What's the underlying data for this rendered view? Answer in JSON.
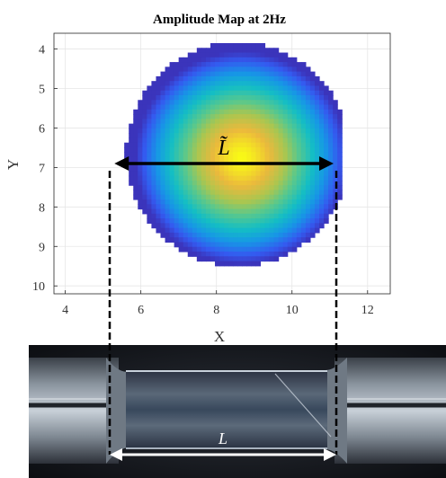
{
  "chart_data": {
    "type": "heatmap",
    "title": "Amplitude Map at 2Hz",
    "xlabel": "X",
    "ylabel": "Y",
    "xlim": [
      3.7,
      12.6
    ],
    "ylim": [
      10.2,
      3.6
    ],
    "y_axis_direction": "top-down",
    "xticks": [
      4,
      6,
      8,
      10,
      12
    ],
    "yticks": [
      4,
      5,
      6,
      7,
      8,
      9,
      10
    ],
    "grid": true,
    "colormap": "parula",
    "field": {
      "shape": "roughly circular blob",
      "center": [
        8.5,
        6.6
      ],
      "peak_at": [
        8.6,
        6.7
      ],
      "x_extent": [
        5.3,
        11.2
      ],
      "y_extent": [
        3.95,
        9.6
      ]
    },
    "annotations": [
      {
        "label": "L̃",
        "kind": "double-arrow",
        "from": [
          5.3,
          6.9
        ],
        "to": [
          11.1,
          6.9
        ],
        "color": "#000000"
      }
    ]
  },
  "photo": {
    "annotation_label": "L",
    "arrow_color": "#ffffff"
  },
  "colors": {
    "colormap_low": "#3e26a8",
    "colormap_mid": "#17bfc4",
    "colormap_high": "#f9fb15",
    "guide_line": "#000000"
  }
}
